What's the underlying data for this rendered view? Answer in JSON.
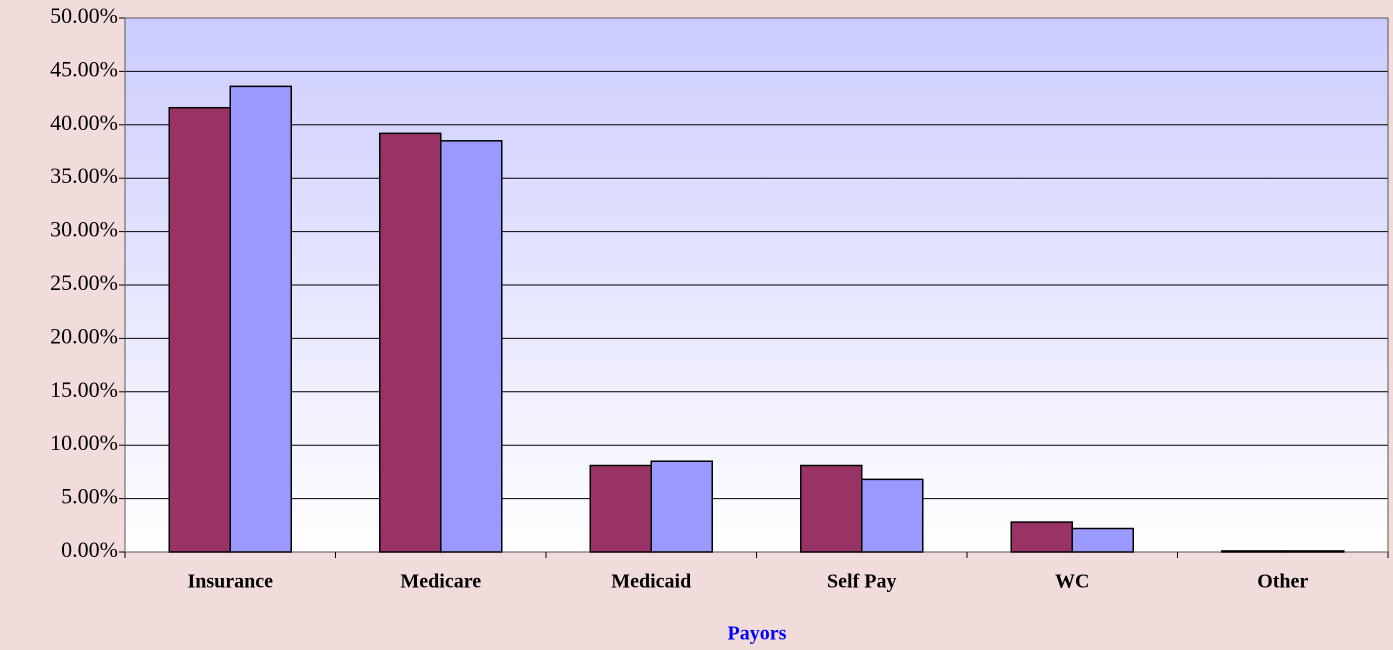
{
  "chart_data": {
    "type": "bar",
    "x_label": "Payors",
    "categories": [
      "Insurance",
      "Medicare",
      "Medicaid",
      "Self Pay",
      "WC",
      "Other"
    ],
    "series": [
      {
        "color": "#993366",
        "values": [
          41.6,
          39.2,
          8.1,
          8.1,
          2.8,
          0.1
        ]
      },
      {
        "color": "#9999ff",
        "values": [
          43.6,
          38.5,
          8.5,
          6.8,
          2.2,
          0.1
        ]
      }
    ],
    "ylim": [
      0,
      50
    ],
    "yticks": [
      {
        "value": 0,
        "label": "0.00%"
      },
      {
        "value": 5,
        "label": "5.00%"
      },
      {
        "value": 10,
        "label": "10.00%"
      },
      {
        "value": 15,
        "label": "15.00%"
      },
      {
        "value": 20,
        "label": "20.00%"
      },
      {
        "value": 25,
        "label": "25.00%"
      },
      {
        "value": 30,
        "label": "30.00%"
      },
      {
        "value": 35,
        "label": "35.00%"
      },
      {
        "value": 40,
        "label": "40.00%"
      },
      {
        "value": 45,
        "label": "45.00%"
      },
      {
        "value": 50,
        "label": "50.00%"
      }
    ],
    "grid": true
  }
}
